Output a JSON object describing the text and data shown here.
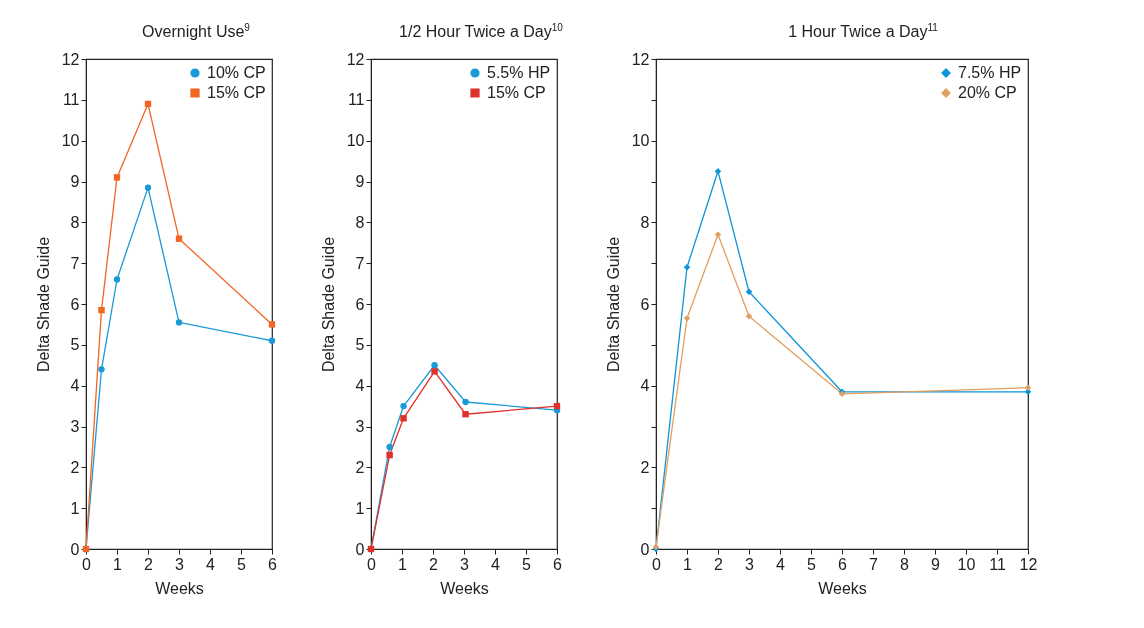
{
  "chart_data": [
    {
      "type": "line",
      "title": "Overnight Use$^{9}$",
      "xlabel": "Weeks",
      "ylabel": "Delta Shade Guide",
      "x": [
        0,
        0.5,
        1,
        2,
        3,
        6
      ],
      "xlim": [
        0,
        6
      ],
      "xticks": [
        0,
        1,
        2,
        3,
        4,
        5,
        6
      ],
      "ylim": [
        0,
        12
      ],
      "yticks": [
        0,
        1,
        2,
        3,
        4,
        5,
        6,
        7,
        8,
        9,
        10,
        11,
        12
      ],
      "legend": "top right",
      "grid": false,
      "series": [
        {
          "name": "10% CP",
          "color": "#1a9ad6",
          "marker": "circle",
          "values": [
            0,
            4.4,
            6.6,
            8.85,
            5.55,
            5.1
          ]
        },
        {
          "name": "15% CP",
          "color": "#f26522",
          "marker": "square",
          "values": [
            0,
            5.85,
            9.1,
            10.9,
            7.6,
            5.5
          ]
        }
      ]
    },
    {
      "type": "line",
      "title": "1/2 Hour Twice a Day$^{10}$",
      "xlabel": "Weeks",
      "ylabel": "Delta Shade Guide",
      "x": [
        0,
        0.6,
        1.05,
        2.05,
        3.05,
        6
      ],
      "xlim": [
        0,
        6
      ],
      "xticks": [
        0,
        1,
        2,
        3,
        4,
        5,
        6
      ],
      "ylim": [
        0,
        12
      ],
      "yticks": [
        0,
        1,
        2,
        3,
        4,
        5,
        6,
        7,
        8,
        9,
        10,
        11,
        12
      ],
      "legend": "top right",
      "grid": false,
      "series": [
        {
          "name": "5.5% HP",
          "color": "#1a9ad6",
          "marker": "circle",
          "values": [
            0,
            2.5,
            3.5,
            4.5,
            3.6,
            3.4
          ]
        },
        {
          "name": "15% CP",
          "color": "#e0302a",
          "marker": "square",
          "values": [
            0,
            2.3,
            3.2,
            4.35,
            3.3,
            3.5
          ]
        }
      ]
    },
    {
      "type": "line",
      "title": "1 Hour Twice a Day$^{11}$",
      "xlabel": "Weeks",
      "ylabel": "Delta Shade Guide",
      "x": [
        0,
        1,
        2,
        3,
        6,
        12
      ],
      "xlim": [
        0,
        12
      ],
      "xticks": [
        0,
        1,
        2,
        3,
        4,
        5,
        6,
        7,
        8,
        9,
        10,
        11,
        12
      ],
      "ylim": [
        0,
        12
      ],
      "yticks": [
        0,
        {
          "value": 1,
          "label": null
        },
        2,
        {
          "value": 3,
          "label": null
        },
        4,
        {
          "value": 5,
          "label": null
        },
        6,
        {
          "value": 7,
          "label": null
        },
        8,
        {
          "value": 9,
          "label": null
        },
        10,
        {
          "value": 11,
          "label": null
        },
        12
      ],
      "legend": "top right",
      "grid": false,
      "marker": "diamond",
      "series": [
        {
          "name": "7.5% HP",
          "color": "#0d95d8",
          "values": [
            0,
            6.9,
            9.25,
            6.3,
            3.85,
            3.85
          ]
        },
        {
          "name": "20% CP",
          "color": "#e0a060",
          "values": [
            0.05,
            5.65,
            7.7,
            5.7,
            3.8,
            3.95
          ]
        }
      ]
    }
  ]
}
